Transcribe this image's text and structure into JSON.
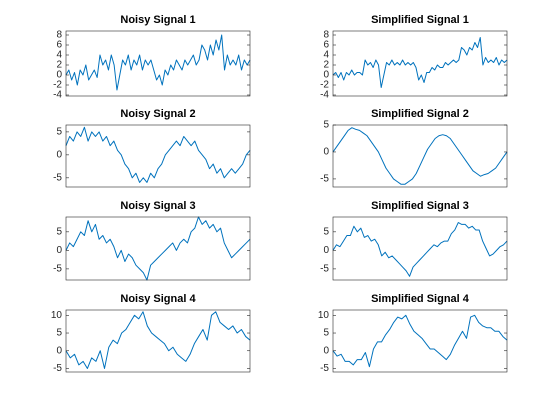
{
  "chart_data": [
    {
      "type": "line",
      "title": "Noisy Signal 1",
      "color": "#0072bd",
      "ylim": [
        -4.2,
        8.8
      ],
      "yticks": [
        -4,
        -2,
        0,
        2,
        4,
        6,
        8
      ],
      "values": [
        0,
        1,
        -1,
        0.5,
        -2,
        1,
        0,
        2,
        -1,
        0,
        1,
        -0.5,
        4,
        2,
        3,
        1,
        4,
        2,
        -3,
        0,
        3,
        2,
        4,
        1,
        3,
        2,
        4,
        1,
        3,
        2,
        3,
        1,
        -1,
        0,
        -2,
        1,
        0,
        2,
        1,
        3,
        2,
        1,
        3,
        2,
        3,
        4,
        2,
        3,
        6,
        5,
        3,
        6,
        4,
        7,
        5,
        8,
        1,
        4,
        2,
        3,
        2,
        4,
        1,
        3,
        2,
        3
      ]
    },
    {
      "type": "line",
      "title": "Simplified Signal 1",
      "color": "#0072bd",
      "ylim": [
        -4.2,
        8.8
      ],
      "yticks": [
        -4,
        -2,
        0,
        2,
        4,
        6,
        8
      ],
      "values": [
        0,
        0.5,
        -0.5,
        0.5,
        -1,
        0.5,
        0,
        1,
        0,
        0.5,
        0.5,
        0,
        3,
        2,
        2.5,
        1.5,
        3,
        2,
        -2.5,
        0,
        2.5,
        2,
        3,
        2,
        2.5,
        2,
        3,
        2,
        2.5,
        2,
        2.5,
        1.5,
        -1,
        0,
        -1.5,
        0.5,
        0.5,
        1.5,
        1,
        2,
        1.5,
        1.5,
        2.5,
        2,
        2.5,
        3,
        2.5,
        3,
        5.5,
        5,
        4,
        5.5,
        5,
        6.5,
        5.5,
        7.5,
        2,
        3.5,
        2.5,
        3,
        2.5,
        3.5,
        2,
        3,
        2.5,
        3
      ]
    },
    {
      "type": "line",
      "title": "Noisy Signal 2",
      "color": "#0072bd",
      "ylim": [
        -7,
        6.5
      ],
      "yticks": [
        -5,
        0,
        5
      ],
      "values": [
        2,
        4,
        3,
        5,
        4,
        6,
        3,
        5,
        4,
        5,
        3,
        4,
        2,
        3,
        1,
        0,
        -2,
        -3,
        -5,
        -4,
        -6,
        -5,
        -6,
        -4,
        -5,
        -3,
        -2,
        0,
        1,
        2,
        3,
        2,
        4,
        3,
        2,
        3,
        1,
        0,
        -1,
        -3,
        -2,
        -4,
        -3,
        -5,
        -4,
        -3,
        -4,
        -3,
        -2,
        0,
        1
      ]
    },
    {
      "type": "line",
      "title": "Simplified Signal 2",
      "color": "#0072bd",
      "ylim": [
        -6.5,
        5
      ],
      "yticks": [
        -5,
        0,
        5
      ],
      "values": [
        0,
        1,
        2,
        3,
        4,
        4.5,
        4.2,
        4,
        3.5,
        3,
        2,
        1,
        0,
        -1.5,
        -3,
        -4,
        -5,
        -5.5,
        -6,
        -6,
        -5.5,
        -5,
        -4,
        -2.5,
        -1,
        0.5,
        1.5,
        2.5,
        3,
        3.2,
        3,
        2.5,
        1.5,
        0.5,
        -0.5,
        -1.5,
        -2.5,
        -3.5,
        -4,
        -4.5,
        -4.2,
        -4,
        -3.5,
        -3,
        -2,
        -1,
        0
      ]
    },
    {
      "type": "line",
      "title": "Noisy Signal 3",
      "color": "#0072bd",
      "ylim": [
        -8,
        9
      ],
      "yticks": [
        -5,
        0,
        5
      ],
      "values": [
        0,
        2,
        1,
        3,
        5,
        4,
        8,
        5,
        7,
        3,
        4,
        2,
        3,
        1,
        -2,
        0,
        -3,
        -1,
        -2,
        -4,
        -5,
        -6,
        -8,
        -4,
        -3,
        -2,
        -1,
        0,
        1,
        2,
        0,
        2,
        3,
        2,
        5,
        6,
        9,
        7,
        8,
        6,
        7,
        5,
        6,
        2,
        0,
        -2,
        -1,
        0,
        1,
        2,
        3
      ]
    },
    {
      "type": "line",
      "title": "Simplified Signal 3",
      "color": "#0072bd",
      "ylim": [
        -8,
        9
      ],
      "yticks": [
        -5,
        0,
        5
      ],
      "values": [
        0,
        1.5,
        1,
        2.5,
        4,
        4,
        6.5,
        5,
        6,
        3.5,
        4,
        2.5,
        3,
        1.5,
        -1.5,
        -0.5,
        -2,
        -1.5,
        -2.5,
        -3.5,
        -4.5,
        -5.5,
        -7,
        -4.5,
        -3.5,
        -2.5,
        -1.5,
        -0.5,
        0.5,
        1.5,
        1,
        2,
        2.5,
        2.5,
        4.5,
        5.5,
        7.5,
        7,
        7,
        6,
        6.5,
        5.5,
        5.5,
        2.5,
        0.5,
        -1.5,
        -1,
        0,
        1,
        1.5,
        2.5
      ]
    },
    {
      "type": "line",
      "title": "Noisy Signal 4",
      "color": "#0072bd",
      "ylim": [
        -6,
        11.5
      ],
      "yticks": [
        -5,
        0,
        5,
        10
      ],
      "values": [
        0,
        -2,
        -1,
        -4,
        -3,
        -5,
        -2,
        -3,
        0,
        -5,
        1,
        3,
        2,
        5,
        6,
        8,
        10,
        9,
        11,
        7,
        5,
        4,
        3,
        2,
        0,
        1,
        -1,
        -2,
        -3,
        -1,
        2,
        4,
        6,
        3,
        10,
        11,
        8,
        7,
        6,
        7,
        5,
        6,
        4,
        3
      ]
    },
    {
      "type": "line",
      "title": "Simplified Signal 4",
      "color": "#0072bd",
      "ylim": [
        -6,
        11.5
      ],
      "yticks": [
        -5,
        0,
        5,
        10
      ],
      "values": [
        0,
        -1.5,
        -1,
        -3,
        -3,
        -4,
        -2.5,
        -2.5,
        -0.5,
        -4.5,
        0.5,
        2.5,
        2.5,
        4.5,
        6,
        8,
        9.5,
        9,
        10,
        7.5,
        5.5,
        4.5,
        3.5,
        2,
        0.5,
        0.5,
        -0.5,
        -1.5,
        -2.5,
        -1,
        1.5,
        3.5,
        5.5,
        3.5,
        9.5,
        10,
        8,
        7,
        6.5,
        6.5,
        5.5,
        5.5,
        4,
        3
      ]
    }
  ]
}
